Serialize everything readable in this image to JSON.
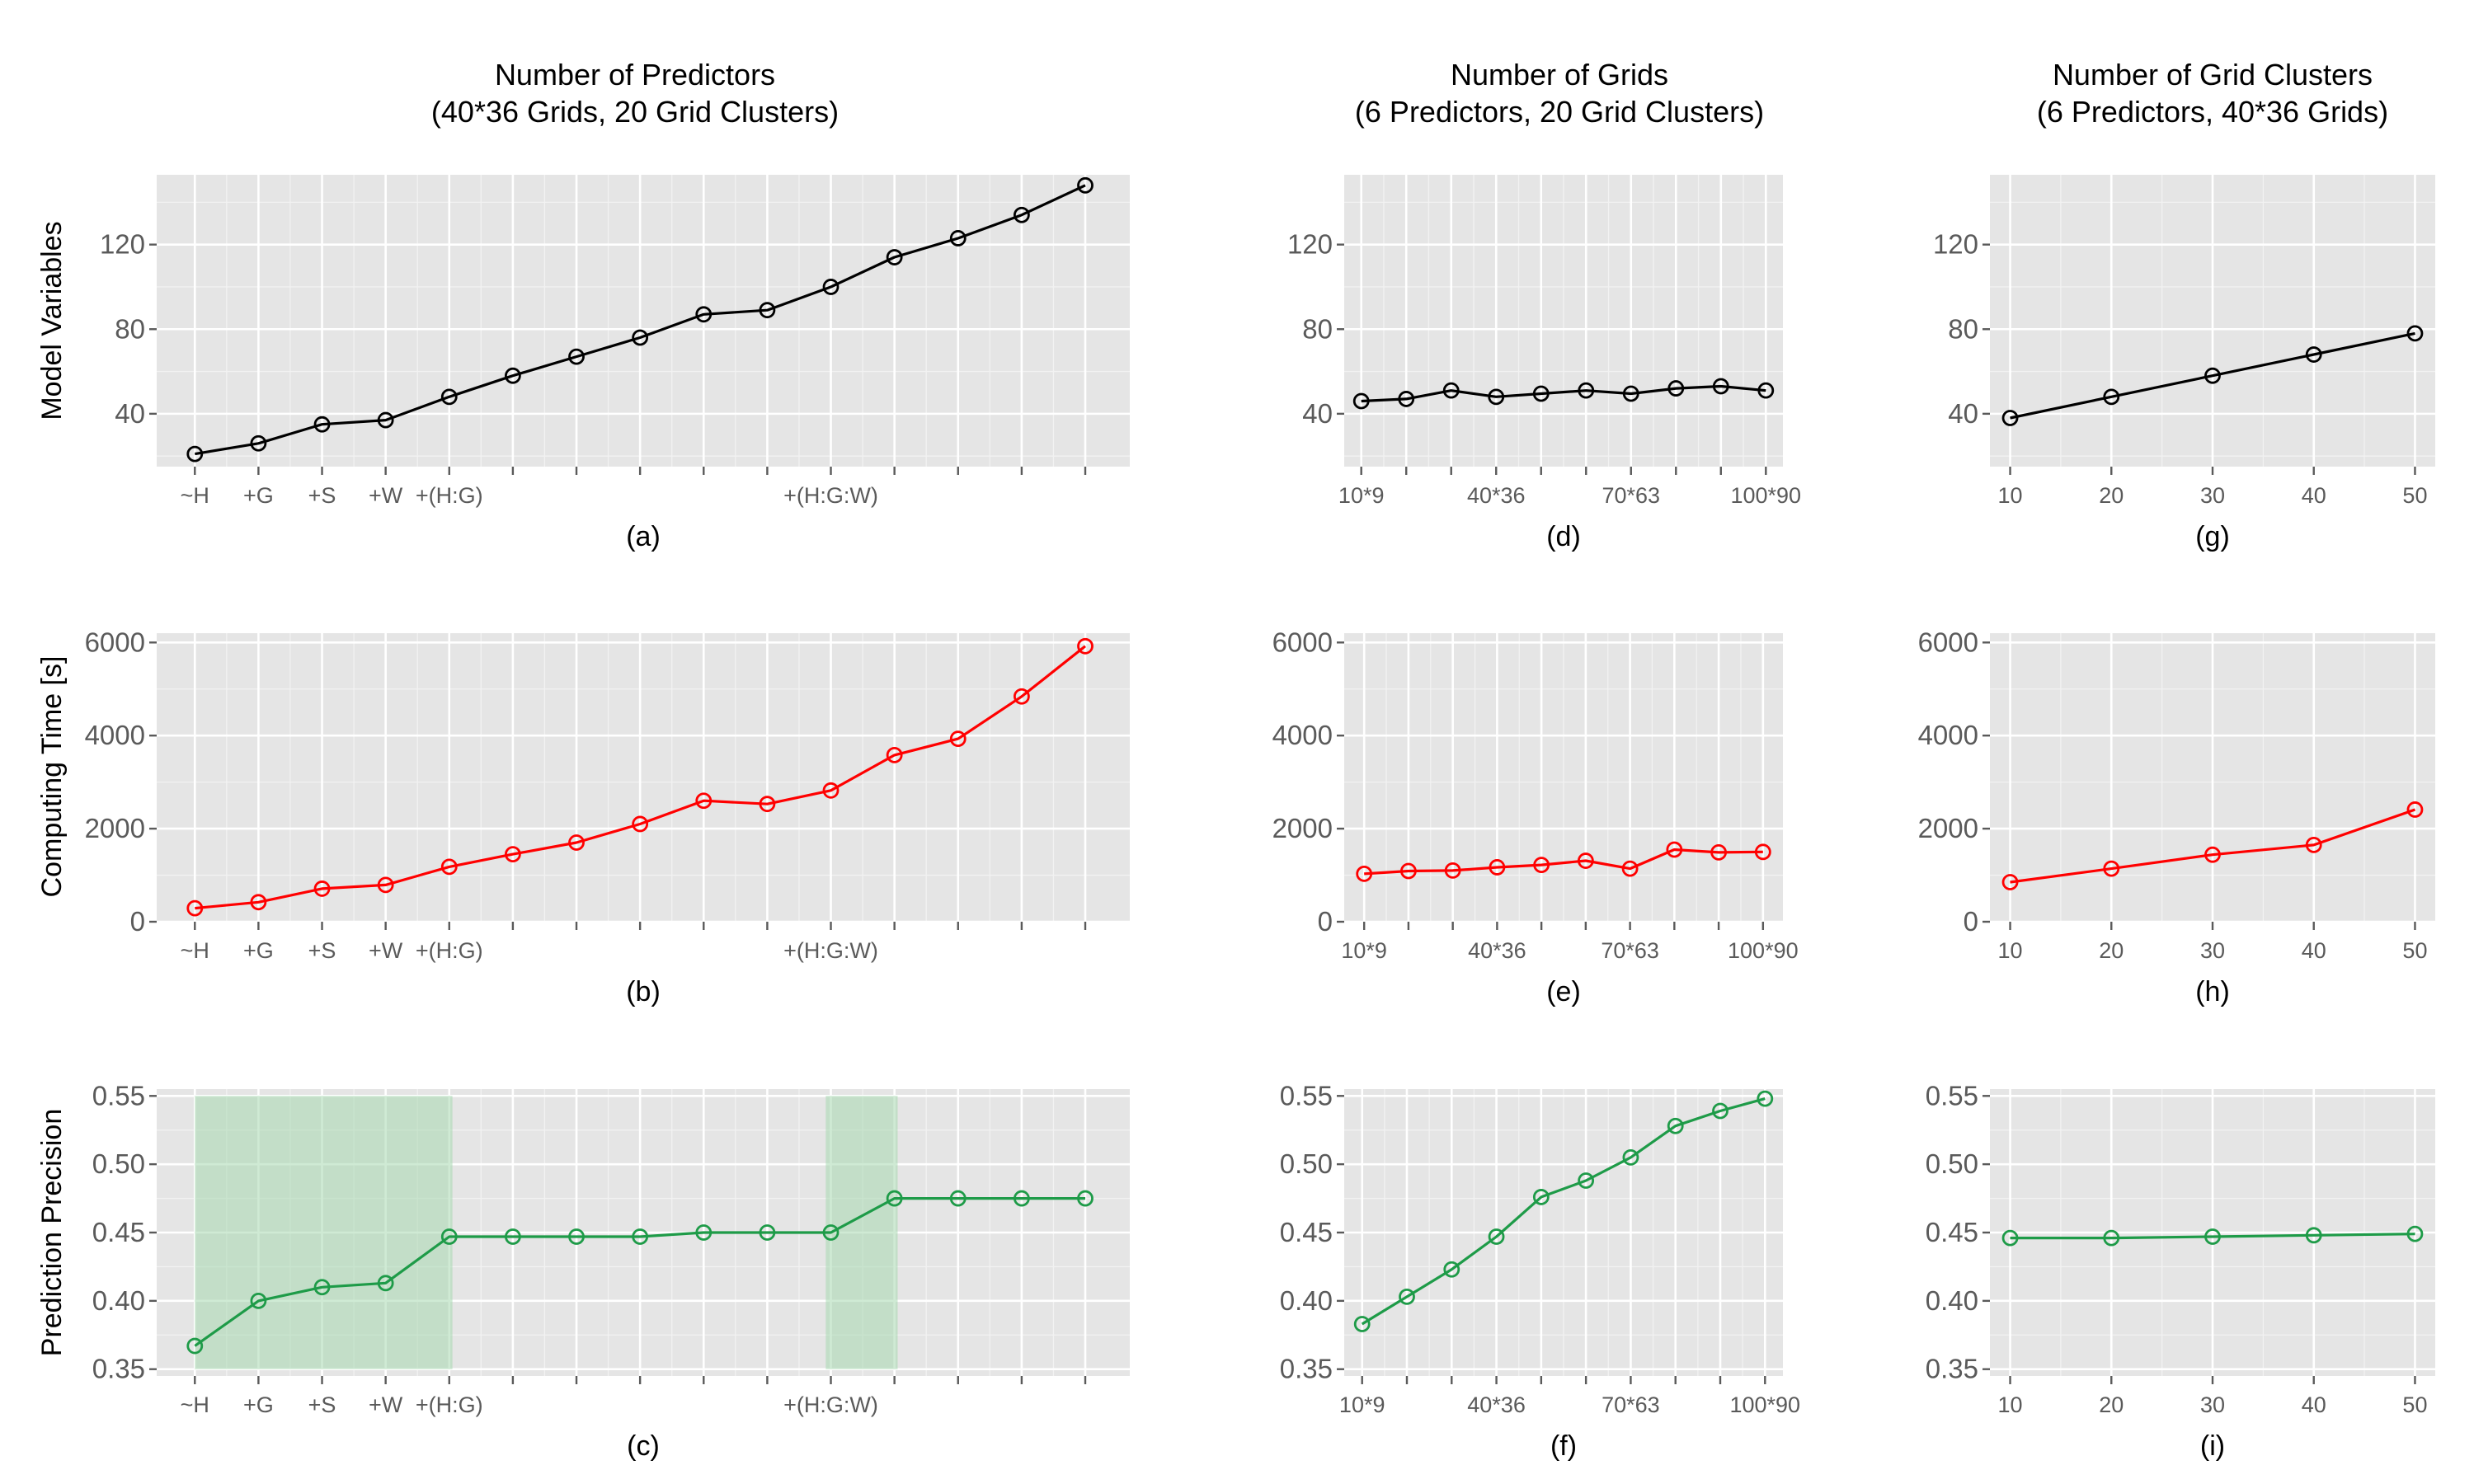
{
  "colors": {
    "row0": "#000000",
    "row1": "#ff0000",
    "row2": "#1e9b48",
    "highlight": "#a8d8b0"
  },
  "column_titles": [
    [
      "Number of Predictors",
      "(40*36 Grids, 20 Grid Clusters)"
    ],
    [
      "Number of Grids",
      "(6 Predictors, 20 Grid Clusters)"
    ],
    [
      "Number of Grid Clusters",
      "(6 Predictors, 40*36 Grids)"
    ]
  ],
  "row_labels": [
    "Model Variables",
    "Computing Time [s]",
    "Prediction Precision"
  ],
  "chart_data": [
    {
      "id": "a",
      "type": "line",
      "row": 0,
      "col": 0,
      "label": "(a)",
      "x": [
        1,
        2,
        3,
        4,
        5,
        6,
        7,
        8,
        9,
        10,
        11,
        12,
        13,
        14,
        15
      ],
      "values": [
        21,
        26,
        35,
        37,
        48,
        58,
        67,
        76,
        87,
        89,
        100,
        114,
        123,
        134,
        148
      ],
      "xlim": [
        0.4,
        15.7
      ],
      "ylim": [
        15,
        153
      ],
      "yticks": [
        40,
        80,
        120
      ],
      "xticks": [
        1,
        2,
        3,
        4,
        5,
        6,
        7,
        8,
        9,
        10,
        11,
        12,
        13,
        14,
        15
      ],
      "xtick_labels": [
        "~H",
        "+G",
        "+S",
        "+W",
        "+(H:G)",
        "",
        "",
        "",
        "",
        "",
        "+(H:G:W)",
        "",
        "",
        "",
        ""
      ],
      "highlight": []
    },
    {
      "id": "b",
      "type": "line",
      "row": 1,
      "col": 0,
      "label": "(b)",
      "x": [
        1,
        2,
        3,
        4,
        5,
        6,
        7,
        8,
        9,
        10,
        11,
        12,
        13,
        14,
        15
      ],
      "values": [
        290,
        420,
        710,
        790,
        1180,
        1450,
        1700,
        2100,
        2600,
        2530,
        2820,
        3580,
        3930,
        4840,
        5920
      ],
      "xlim": [
        0.4,
        15.7
      ],
      "ylim": [
        0,
        6200
      ],
      "yticks": [
        0,
        2000,
        4000,
        6000
      ],
      "xticks": [
        1,
        2,
        3,
        4,
        5,
        6,
        7,
        8,
        9,
        10,
        11,
        12,
        13,
        14,
        15
      ],
      "xtick_labels": [
        "~H",
        "+G",
        "+S",
        "+W",
        "+(H:G)",
        "",
        "",
        "",
        "",
        "",
        "+(H:G:W)",
        "",
        "",
        "",
        ""
      ],
      "highlight": []
    },
    {
      "id": "c",
      "type": "line",
      "row": 2,
      "col": 0,
      "label": "(c)",
      "x": [
        1,
        2,
        3,
        4,
        5,
        6,
        7,
        8,
        9,
        10,
        11,
        12,
        13,
        14,
        15
      ],
      "values": [
        0.367,
        0.4,
        0.41,
        0.413,
        0.447,
        0.447,
        0.447,
        0.447,
        0.45,
        0.45,
        0.45,
        0.475,
        0.475,
        0.475,
        0.475
      ],
      "xlim": [
        0.4,
        15.7
      ],
      "ylim": [
        0.345,
        0.555
      ],
      "yticks": [
        0.35,
        0.4,
        0.45,
        0.5,
        0.55
      ],
      "xticks": [
        1,
        2,
        3,
        4,
        5,
        6,
        7,
        8,
        9,
        10,
        11,
        12,
        13,
        14,
        15
      ],
      "xtick_labels": [
        "~H",
        "+G",
        "+S",
        "+W",
        "+(H:G)",
        "",
        "",
        "",
        "",
        "",
        "+(H:G:W)",
        "",
        "",
        "",
        ""
      ],
      "highlight": [
        [
          1,
          5.05
        ],
        [
          10.92,
          12.05
        ]
      ]
    },
    {
      "id": "d",
      "type": "line",
      "row": 0,
      "col": 1,
      "label": "(d)",
      "x": [
        1,
        2,
        3,
        4,
        5,
        6,
        7,
        8,
        9,
        10
      ],
      "values": [
        46,
        47,
        51,
        48,
        49.5,
        51,
        49.5,
        52,
        53,
        51
      ],
      "xlim": [
        0.62,
        10.38
      ],
      "ylim": [
        15,
        153
      ],
      "yticks": [
        40,
        80,
        120
      ],
      "xticks": [
        1,
        2,
        3,
        4,
        5,
        6,
        7,
        8,
        9,
        10
      ],
      "xtick_labels": [
        "10*9",
        "",
        "",
        "40*36",
        "",
        "",
        "70*63",
        "",
        "",
        "100*90"
      ],
      "highlight": []
    },
    {
      "id": "e",
      "type": "line",
      "row": 1,
      "col": 1,
      "label": "(e)",
      "x": [
        1,
        2,
        3,
        4,
        5,
        6,
        7,
        8,
        9,
        10
      ],
      "values": [
        1030,
        1090,
        1100,
        1170,
        1220,
        1310,
        1140,
        1550,
        1490,
        1500
      ],
      "xlim": [
        0.55,
        10.45
      ],
      "ylim": [
        0,
        6200
      ],
      "yticks": [
        0,
        2000,
        4000,
        6000
      ],
      "xticks": [
        1,
        2,
        3,
        4,
        5,
        6,
        7,
        8,
        9,
        10
      ],
      "xtick_labels": [
        "10*9",
        "",
        "",
        "40*36",
        "",
        "",
        "70*63",
        "",
        "",
        "100*90"
      ],
      "highlight": []
    },
    {
      "id": "f",
      "type": "line",
      "row": 2,
      "col": 1,
      "label": "(f)",
      "x": [
        1,
        2,
        3,
        4,
        5,
        6,
        7,
        8,
        9,
        10
      ],
      "values": [
        0.383,
        0.403,
        0.423,
        0.447,
        0.476,
        0.488,
        0.505,
        0.528,
        0.539,
        0.548
      ],
      "xlim": [
        0.6,
        10.4
      ],
      "ylim": [
        0.345,
        0.555
      ],
      "yticks": [
        0.35,
        0.4,
        0.45,
        0.5,
        0.55
      ],
      "xticks": [
        1,
        2,
        3,
        4,
        5,
        6,
        7,
        8,
        9,
        10
      ],
      "xtick_labels": [
        "10*9",
        "",
        "",
        "40*36",
        "",
        "",
        "70*63",
        "",
        "",
        "100*90"
      ],
      "highlight": []
    },
    {
      "id": "g",
      "type": "line",
      "row": 0,
      "col": 2,
      "label": "(g)",
      "x": [
        10,
        20,
        30,
        40,
        50
      ],
      "values": [
        38,
        48,
        58,
        68,
        78
      ],
      "xlim": [
        8,
        52
      ],
      "ylim": [
        15,
        153
      ],
      "yticks": [
        40,
        80,
        120
      ],
      "xticks": [
        10,
        20,
        30,
        40,
        50
      ],
      "xtick_labels": [
        "10",
        "20",
        "30",
        "40",
        "50"
      ],
      "highlight": []
    },
    {
      "id": "h",
      "type": "line",
      "row": 1,
      "col": 2,
      "label": "(h)",
      "x": [
        10,
        20,
        30,
        40,
        50
      ],
      "values": [
        850,
        1140,
        1440,
        1650,
        2410
      ],
      "xlim": [
        8,
        52
      ],
      "ylim": [
        0,
        6200
      ],
      "yticks": [
        0,
        2000,
        4000,
        6000
      ],
      "xticks": [
        10,
        20,
        30,
        40,
        50
      ],
      "xtick_labels": [
        "10",
        "20",
        "30",
        "40",
        "50"
      ],
      "highlight": []
    },
    {
      "id": "i",
      "type": "line",
      "row": 2,
      "col": 2,
      "label": "(i)",
      "x": [
        10,
        20,
        30,
        40,
        50
      ],
      "values": [
        0.446,
        0.446,
        0.447,
        0.448,
        0.449
      ],
      "xlim": [
        8,
        52
      ],
      "ylim": [
        0.345,
        0.555
      ],
      "yticks": [
        0.35,
        0.4,
        0.45,
        0.5,
        0.55
      ],
      "xticks": [
        10,
        20,
        30,
        40,
        50
      ],
      "xtick_labels": [
        "10",
        "20",
        "30",
        "40",
        "50"
      ],
      "highlight": []
    }
  ]
}
